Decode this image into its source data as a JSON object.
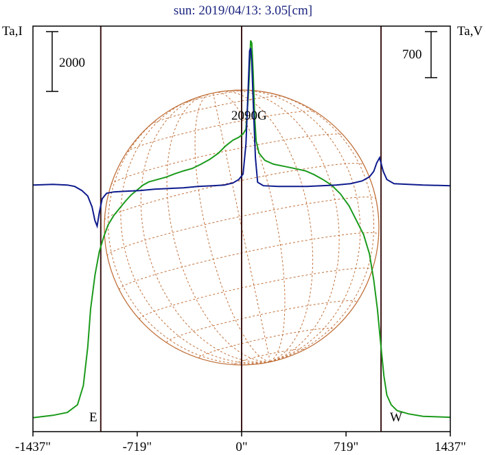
{
  "chart_data": {
    "type": "line",
    "title": "sun: 2019/04/13: 3.05[cm]",
    "ylabel_left": "Ta,I",
    "ylabel_right": "Ta,V",
    "xlim": [
      -1437,
      1437
    ],
    "x_ticks": [
      -1437,
      -719,
      0,
      719,
      1437
    ],
    "x_tick_labels": [
      "-1437\"",
      "-719\"",
      "0\"",
      "719\"",
      "1437\""
    ],
    "scale_bar_left": "2000",
    "scale_bar_right": "700",
    "limb_labels": {
      "east": "E",
      "west": "W"
    },
    "annotation": "2090G",
    "vertical_lines_x": [
      -970,
      0,
      960
    ],
    "colors": {
      "I": "#1a9a1a",
      "V": "#0d1a8c",
      "grid": "#c0703a",
      "axes": "#000000",
      "vlines": "#3a1414"
    },
    "series": [
      {
        "name": "I",
        "color": "#1a9a1a",
        "axis": "left",
        "ylim": [
          -260,
          8200
        ],
        "points": [
          [
            -1437,
            30
          ],
          [
            -1300,
            80
          ],
          [
            -1200,
            140
          ],
          [
            -1130,
            300
          ],
          [
            -1090,
            700
          ],
          [
            -1060,
            1500
          ],
          [
            -1040,
            2300
          ],
          [
            -1010,
            3000
          ],
          [
            -980,
            3500
          ],
          [
            -950,
            3800
          ],
          [
            -920,
            4050
          ],
          [
            -880,
            4250
          ],
          [
            -840,
            4400
          ],
          [
            -800,
            4550
          ],
          [
            -760,
            4680
          ],
          [
            -720,
            4780
          ],
          [
            -680,
            4880
          ],
          [
            -640,
            4950
          ],
          [
            -580,
            5000
          ],
          [
            -520,
            5050
          ],
          [
            -460,
            5120
          ],
          [
            -400,
            5180
          ],
          [
            -340,
            5230
          ],
          [
            -280,
            5320
          ],
          [
            -220,
            5420
          ],
          [
            -160,
            5550
          ],
          [
            -110,
            5700
          ],
          [
            -60,
            5820
          ],
          [
            -20,
            5880
          ],
          [
            10,
            5950
          ],
          [
            30,
            6050
          ],
          [
            45,
            6700
          ],
          [
            55,
            7300
          ],
          [
            62,
            7900
          ],
          [
            70,
            7850
          ],
          [
            80,
            7200
          ],
          [
            90,
            6300
          ],
          [
            100,
            5800
          ],
          [
            120,
            5550
          ],
          [
            160,
            5400
          ],
          [
            220,
            5320
          ],
          [
            300,
            5270
          ],
          [
            380,
            5220
          ],
          [
            440,
            5180
          ],
          [
            500,
            5100
          ],
          [
            560,
            5000
          ],
          [
            620,
            4880
          ],
          [
            680,
            4700
          ],
          [
            740,
            4450
          ],
          [
            790,
            4150
          ],
          [
            840,
            3850
          ],
          [
            880,
            3450
          ],
          [
            910,
            2900
          ],
          [
            935,
            2300
          ],
          [
            960,
            1500
          ],
          [
            980,
            900
          ],
          [
            1000,
            500
          ],
          [
            1030,
            300
          ],
          [
            1070,
            180
          ],
          [
            1150,
            110
          ],
          [
            1250,
            60
          ],
          [
            1437,
            40
          ]
        ]
      },
      {
        "name": "V",
        "color": "#0d1a8c",
        "axis": "right",
        "ylim": [
          -1800,
          1160
        ],
        "points": [
          [
            -1437,
            0
          ],
          [
            -1300,
            5
          ],
          [
            -1200,
            0
          ],
          [
            -1150,
            -10
          ],
          [
            -1100,
            -40
          ],
          [
            -1060,
            -80
          ],
          [
            -1030,
            -160
          ],
          [
            -1010,
            -260
          ],
          [
            -995,
            -300
          ],
          [
            -980,
            -200
          ],
          [
            -960,
            -100
          ],
          [
            -930,
            -60
          ],
          [
            -880,
            -50
          ],
          [
            -800,
            -45
          ],
          [
            -700,
            -40
          ],
          [
            -600,
            -30
          ],
          [
            -500,
            -25
          ],
          [
            -400,
            -20
          ],
          [
            -300,
            -10
          ],
          [
            -200,
            -5
          ],
          [
            -120,
            0
          ],
          [
            -60,
            15
          ],
          [
            -20,
            40
          ],
          [
            10,
            80
          ],
          [
            30,
            300
          ],
          [
            45,
            700
          ],
          [
            55,
            980
          ],
          [
            62,
            1000
          ],
          [
            70,
            900
          ],
          [
            80,
            600
          ],
          [
            95,
            200
          ],
          [
            110,
            20
          ],
          [
            150,
            -5
          ],
          [
            250,
            -10
          ],
          [
            350,
            -10
          ],
          [
            450,
            -10
          ],
          [
            550,
            -5
          ],
          [
            650,
            0
          ],
          [
            750,
            10
          ],
          [
            830,
            30
          ],
          [
            880,
            60
          ],
          [
            910,
            100
          ],
          [
            930,
            160
          ],
          [
            950,
            200
          ],
          [
            975,
            100
          ],
          [
            1000,
            40
          ],
          [
            1050,
            10
          ],
          [
            1150,
            5
          ],
          [
            1250,
            0
          ],
          [
            1437,
            -5
          ]
        ]
      }
    ]
  }
}
